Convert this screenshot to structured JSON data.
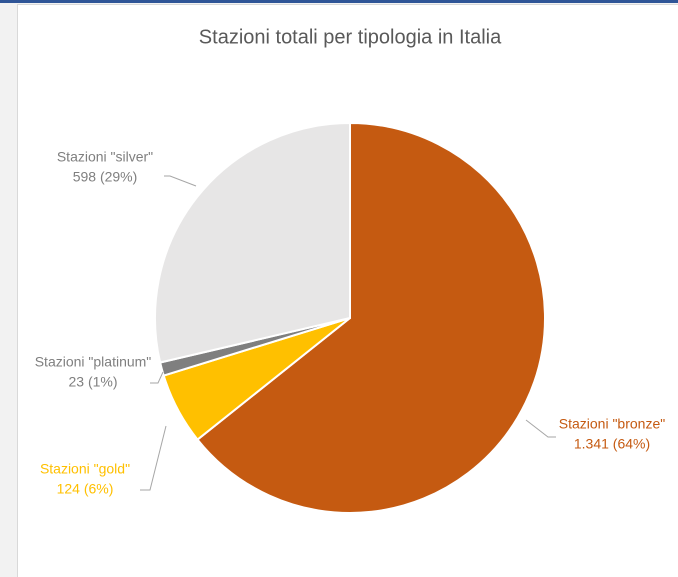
{
  "chart_data": {
    "type": "pie",
    "title": "Stazioni totali per tipologia in Italia",
    "categories": [
      "Stazioni \"bronze\"",
      "Stazioni \"gold\"",
      "Stazioni \"platinum\"",
      "Stazioni \"silver\""
    ],
    "values": [
      1341,
      124,
      23,
      598
    ],
    "value_labels": [
      "1.341 (64%)",
      "124 (6%)",
      "23 (1%)",
      "598 (29%)"
    ],
    "colors": [
      "#c55a11",
      "#ffc000",
      "#7f7f7f",
      "#e7e6e6"
    ],
    "label_colors": [
      "#c55a11",
      "#ffc000",
      "#7f7f7f",
      "#7f7f7f"
    ]
  }
}
